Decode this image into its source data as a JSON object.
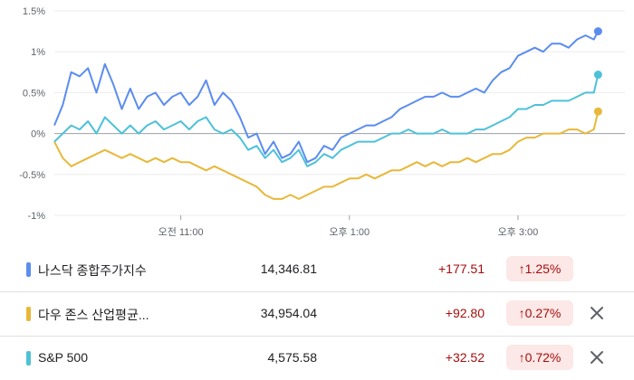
{
  "chart_data": {
    "type": "line",
    "ylim": [
      -1.0,
      1.5
    ],
    "y_ticks": [
      "1.5%",
      "1%",
      "0.5%",
      "0%",
      "-0.5%",
      "-1%"
    ],
    "y_tick_values": [
      1.5,
      1.0,
      0.5,
      0.0,
      -0.5,
      -1.0
    ],
    "x_ticks": [
      {
        "label": "오전 11:00",
        "value": 11.0
      },
      {
        "label": "오후 1:00",
        "value": 13.0
      },
      {
        "label": "오후 3:00",
        "value": 15.0
      }
    ],
    "xlim": [
      9.5,
      16.0
    ],
    "grid": true,
    "series": [
      {
        "name": "나스닥 종합주가지수",
        "color": "#5b8def",
        "x": [
          9.5,
          9.6,
          9.7,
          9.8,
          9.9,
          10.0,
          10.1,
          10.2,
          10.3,
          10.4,
          10.5,
          10.6,
          10.7,
          10.8,
          10.9,
          11.0,
          11.1,
          11.2,
          11.3,
          11.4,
          11.5,
          11.6,
          11.7,
          11.8,
          11.9,
          12.0,
          12.1,
          12.2,
          12.3,
          12.4,
          12.5,
          12.6,
          12.7,
          12.8,
          12.9,
          13.0,
          13.1,
          13.2,
          13.3,
          13.4,
          13.5,
          13.6,
          13.7,
          13.8,
          13.9,
          14.0,
          14.1,
          14.2,
          14.3,
          14.4,
          14.5,
          14.6,
          14.7,
          14.8,
          14.9,
          15.0,
          15.1,
          15.2,
          15.3,
          15.4,
          15.5,
          15.6,
          15.7,
          15.8,
          15.9,
          15.95
        ],
        "y": [
          0.1,
          0.35,
          0.75,
          0.7,
          0.8,
          0.5,
          0.85,
          0.6,
          0.3,
          0.55,
          0.3,
          0.45,
          0.5,
          0.35,
          0.45,
          0.5,
          0.35,
          0.45,
          0.65,
          0.35,
          0.5,
          0.4,
          0.2,
          -0.05,
          0.0,
          -0.25,
          -0.1,
          -0.3,
          -0.25,
          -0.1,
          -0.35,
          -0.3,
          -0.15,
          -0.2,
          -0.05,
          0.0,
          0.05,
          0.1,
          0.1,
          0.15,
          0.2,
          0.3,
          0.35,
          0.4,
          0.45,
          0.45,
          0.5,
          0.45,
          0.45,
          0.5,
          0.55,
          0.5,
          0.65,
          0.75,
          0.8,
          0.95,
          1.0,
          1.05,
          1.0,
          1.1,
          1.1,
          1.05,
          1.15,
          1.2,
          1.15,
          1.25
        ]
      },
      {
        "name": "다우 존스 산업평균지수",
        "color": "#e8b83a",
        "x": [
          9.5,
          9.6,
          9.7,
          9.8,
          9.9,
          10.0,
          10.1,
          10.2,
          10.3,
          10.4,
          10.5,
          10.6,
          10.7,
          10.8,
          10.9,
          11.0,
          11.1,
          11.2,
          11.3,
          11.4,
          11.5,
          11.6,
          11.7,
          11.8,
          11.9,
          12.0,
          12.1,
          12.2,
          12.3,
          12.4,
          12.5,
          12.6,
          12.7,
          12.8,
          12.9,
          13.0,
          13.1,
          13.2,
          13.3,
          13.4,
          13.5,
          13.6,
          13.7,
          13.8,
          13.9,
          14.0,
          14.1,
          14.2,
          14.3,
          14.4,
          14.5,
          14.6,
          14.7,
          14.8,
          14.9,
          15.0,
          15.1,
          15.2,
          15.3,
          15.4,
          15.5,
          15.6,
          15.7,
          15.8,
          15.9,
          15.95
        ],
        "y": [
          -0.1,
          -0.3,
          -0.4,
          -0.35,
          -0.3,
          -0.25,
          -0.2,
          -0.25,
          -0.3,
          -0.25,
          -0.3,
          -0.35,
          -0.3,
          -0.35,
          -0.3,
          -0.35,
          -0.35,
          -0.4,
          -0.45,
          -0.4,
          -0.45,
          -0.5,
          -0.55,
          -0.6,
          -0.65,
          -0.75,
          -0.8,
          -0.8,
          -0.75,
          -0.8,
          -0.75,
          -0.7,
          -0.65,
          -0.65,
          -0.6,
          -0.55,
          -0.55,
          -0.5,
          -0.55,
          -0.5,
          -0.45,
          -0.45,
          -0.4,
          -0.35,
          -0.4,
          -0.35,
          -0.4,
          -0.35,
          -0.35,
          -0.3,
          -0.35,
          -0.3,
          -0.25,
          -0.25,
          -0.2,
          -0.1,
          -0.05,
          -0.05,
          0.0,
          0.0,
          0.0,
          0.05,
          0.05,
          0.0,
          0.05,
          0.27
        ]
      },
      {
        "name": "S&P 500",
        "color": "#4ec1d9",
        "x": [
          9.5,
          9.6,
          9.7,
          9.8,
          9.9,
          10.0,
          10.1,
          10.2,
          10.3,
          10.4,
          10.5,
          10.6,
          10.7,
          10.8,
          10.9,
          11.0,
          11.1,
          11.2,
          11.3,
          11.4,
          11.5,
          11.6,
          11.7,
          11.8,
          11.9,
          12.0,
          12.1,
          12.2,
          12.3,
          12.4,
          12.5,
          12.6,
          12.7,
          12.8,
          12.9,
          13.0,
          13.1,
          13.2,
          13.3,
          13.4,
          13.5,
          13.6,
          13.7,
          13.8,
          13.9,
          14.0,
          14.1,
          14.2,
          14.3,
          14.4,
          14.5,
          14.6,
          14.7,
          14.8,
          14.9,
          15.0,
          15.1,
          15.2,
          15.3,
          15.4,
          15.5,
          15.6,
          15.7,
          15.8,
          15.9,
          15.95
        ],
        "y": [
          -0.1,
          0.0,
          0.1,
          0.05,
          0.15,
          0.0,
          0.2,
          0.1,
          0.0,
          0.1,
          0.0,
          0.1,
          0.15,
          0.05,
          0.1,
          0.15,
          0.05,
          0.15,
          0.2,
          0.05,
          0.0,
          0.05,
          -0.05,
          -0.2,
          -0.15,
          -0.3,
          -0.2,
          -0.35,
          -0.3,
          -0.2,
          -0.4,
          -0.35,
          -0.25,
          -0.3,
          -0.2,
          -0.15,
          -0.1,
          -0.1,
          -0.1,
          -0.05,
          0.0,
          0.0,
          0.05,
          0.0,
          0.0,
          0.0,
          0.05,
          0.0,
          0.0,
          0.0,
          0.05,
          0.05,
          0.1,
          0.15,
          0.2,
          0.3,
          0.3,
          0.35,
          0.35,
          0.4,
          0.4,
          0.4,
          0.45,
          0.5,
          0.5,
          0.72
        ]
      }
    ]
  },
  "rows": [
    {
      "name": "나스닥 종합주가지수",
      "price": "14,346.81",
      "change": "+177.51",
      "pct": "1.25%",
      "color": "#5b8def",
      "closable": false,
      "arrow": "↑"
    },
    {
      "name": "다우 존스 산업평균...",
      "price": "34,954.04",
      "change": "+92.80",
      "pct": "0.27%",
      "color": "#e8b83a",
      "closable": true,
      "arrow": "↑"
    },
    {
      "name": "S&P 500",
      "price": "4,575.58",
      "change": "+32.52",
      "pct": "0.72%",
      "color": "#4ec1d9",
      "closable": true,
      "arrow": "↑"
    }
  ]
}
